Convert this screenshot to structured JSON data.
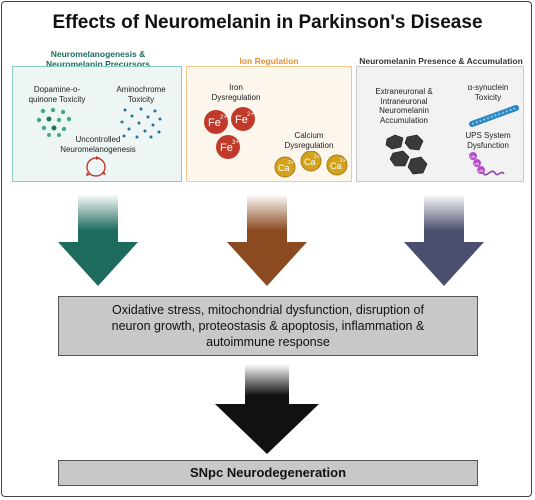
{
  "title": "Effects of Neuromelanin in Parkinson's Disease",
  "colors": {
    "teal": "#1c6b5d",
    "orange": "#e58f2f",
    "brown": "#8b4a1f",
    "slate": "#4a4f6e",
    "black": "#111111",
    "grey": "#c8c8c8"
  },
  "columns": [
    {
      "heading_line1": "Neuromelanogenesis &",
      "heading_line2": "Neuromelanin Precursors",
      "items": [
        {
          "line1": "Dopamine-o-",
          "line2": "quinone Toxicity"
        },
        {
          "line1": "Aminochrome",
          "line2": "Toxicity"
        },
        {
          "line1": "Uncontrolled",
          "line2": "Neuromelanogenesis"
        }
      ]
    },
    {
      "heading": "Ion Regulation",
      "items": [
        {
          "line1": "Iron",
          "line2": "Dysregulation"
        },
        {
          "line1": "Calcium",
          "line2": "Dysregulation"
        }
      ],
      "ions": {
        "fe2": "Fe",
        "fe2_charge": "2+",
        "fe3_charge": "3+",
        "ca": "Ca",
        "ca_charge": "2+"
      }
    },
    {
      "heading": "Neuromelanin Presence & Accumulation",
      "items": [
        {
          "line1": "Extraneuronal &",
          "line2": "Intraneuronal",
          "line3": "Neuromelanin",
          "line4": "Accumulation"
        },
        {
          "line1": "α-synuclein",
          "line2": "Toxicity"
        },
        {
          "line1": "UPS System",
          "line2": "Dysfunction"
        }
      ],
      "ub": "Ub"
    }
  ],
  "effects_box": {
    "line1": "Oxidative stress, mitochondrial dysfunction, disruption of",
    "line2": "neuron growth, proteostasis & apoptosis, inflammation &",
    "line3": "autoimmune response"
  },
  "outcome_box": "SNpc Neurodegeneration"
}
